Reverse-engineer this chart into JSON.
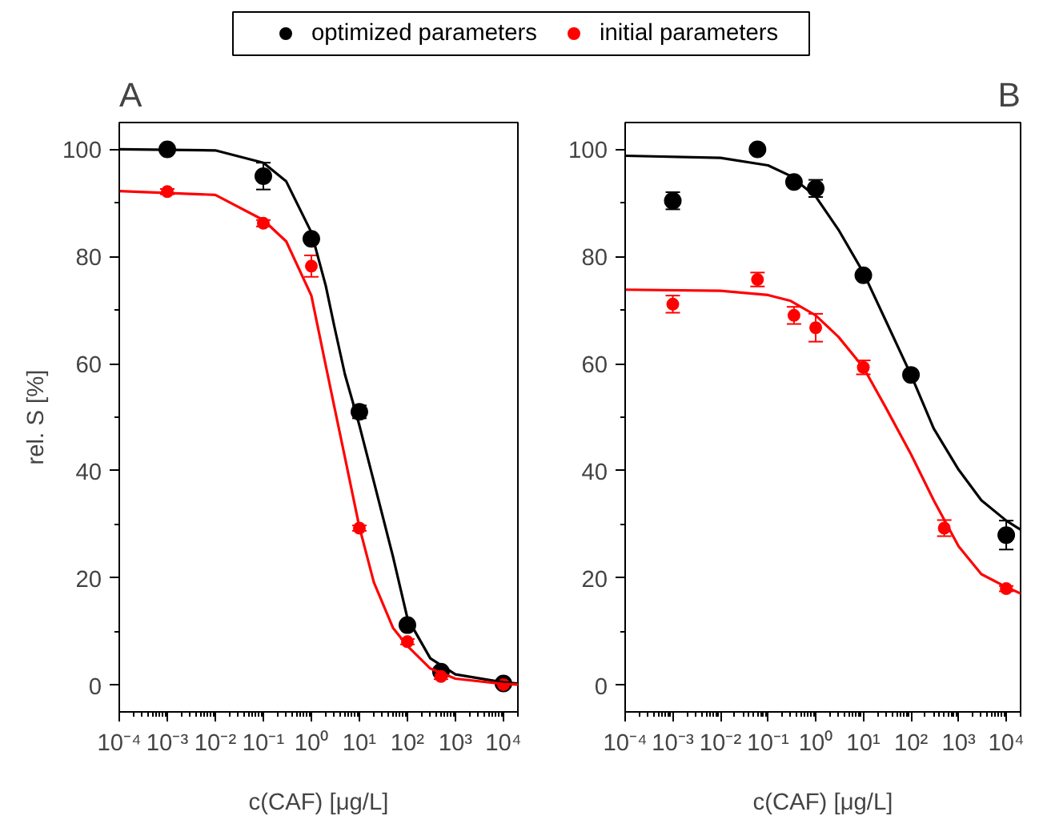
{
  "chart_data": [
    {
      "type": "scatter",
      "title": "A",
      "xlabel": "c(CAF) [μg/L]",
      "ylabel": "rel. S [%]",
      "log": "x",
      "xlim": [
        0.0001,
        20000
      ],
      "ylim": [
        -5,
        105
      ],
      "xticks": [
        {
          "value": 0.0001,
          "label": "10⁻⁴"
        },
        {
          "value": 0.001,
          "label": "10⁻³"
        },
        {
          "value": 0.01,
          "label": "10⁻²"
        },
        {
          "value": 0.1,
          "label": "10⁻¹"
        },
        {
          "value": 1,
          "label": "10⁰"
        },
        {
          "value": 10,
          "label": "10¹"
        },
        {
          "value": 100,
          "label": "10²"
        },
        {
          "value": 1000,
          "label": "10³"
        },
        {
          "value": 10000,
          "label": "10⁴"
        }
      ],
      "yticks": [
        0,
        20,
        40,
        60,
        80,
        100
      ],
      "grid": false,
      "legend": "top",
      "series": [
        {
          "name": "optimized parameters",
          "marker": "circle",
          "color": "#000000",
          "x": [
            0.001,
            0.1,
            1,
            10,
            100,
            500,
            10000
          ],
          "values": [
            100,
            95,
            83.3,
            51,
            11.2,
            2.5,
            0.3
          ],
          "errors": [
            0.5,
            2.5,
            0.7,
            1.2,
            0.5,
            0.8,
            0.4
          ]
        },
        {
          "name": "initial parameters",
          "marker": "circle",
          "color": "#ff0000",
          "x": [
            0.001,
            0.1,
            1,
            10,
            100,
            500,
            10000
          ],
          "values": [
            92.1,
            86.2,
            78.2,
            29.3,
            8.1,
            1.6,
            0.1
          ],
          "errors": [
            0.5,
            0.6,
            2,
            0.5,
            0.5,
            0.5,
            0.3
          ]
        },
        {
          "type": "line",
          "color": "#000000",
          "x": [
            0.0001,
            0.01,
            0.1,
            0.3,
            1,
            2,
            3,
            5,
            10,
            20,
            50,
            100,
            300,
            1000,
            10000,
            20000
          ],
          "values": [
            100,
            99.8,
            97.5,
            94,
            84.5,
            74.5,
            67,
            58,
            48.5,
            38,
            24,
            12.5,
            5,
            2,
            0.5,
            0.3
          ]
        },
        {
          "type": "line",
          "color": "#ff0000",
          "x": [
            0.0001,
            0.01,
            0.1,
            0.3,
            1,
            2,
            3,
            5,
            10,
            20,
            50,
            100,
            300,
            1000,
            10000,
            20000
          ],
          "values": [
            92.2,
            91.5,
            86.8,
            82.8,
            72.7,
            59.6,
            52,
            42.5,
            29.5,
            19.2,
            10.7,
            7.3,
            3.1,
            1.2,
            0.2,
            0.1
          ]
        }
      ]
    },
    {
      "type": "scatter",
      "title": "B",
      "xlabel": "c(CAF) [μg/L]",
      "log": "x",
      "xlim": [
        0.0001,
        20000
      ],
      "ylim": [
        -5,
        105
      ],
      "xticks": [
        {
          "value": 0.0001,
          "label": "10⁻⁴"
        },
        {
          "value": 0.001,
          "label": "10⁻³"
        },
        {
          "value": 0.01,
          "label": "10⁻²"
        },
        {
          "value": 0.1,
          "label": "10⁻¹"
        },
        {
          "value": 1,
          "label": "10⁰"
        },
        {
          "value": 10,
          "label": "10¹"
        },
        {
          "value": 100,
          "label": "10²"
        },
        {
          "value": 1000,
          "label": "10³"
        },
        {
          "value": 10000,
          "label": "10⁴"
        }
      ],
      "yticks": [
        0,
        20,
        40,
        60,
        80,
        100
      ],
      "grid": false,
      "series": [
        {
          "marker": "circle",
          "color": "#000000",
          "x": [
            0.001,
            0.06,
            0.35,
            1,
            10,
            100,
            10000
          ],
          "values": [
            90.4,
            100,
            93.9,
            92.7,
            76.5,
            57.9,
            28
          ],
          "errors": [
            1.6,
            0.8,
            0.8,
            1.6,
            0.5,
            0.8,
            2.7
          ]
        },
        {
          "marker": "circle",
          "color": "#ff0000",
          "x": [
            0.001,
            0.06,
            0.35,
            1,
            10,
            500,
            10000
          ],
          "values": [
            71.1,
            75.7,
            69,
            66.7,
            59.3,
            29.3,
            18
          ],
          "errors": [
            1.6,
            1.3,
            1.6,
            2.6,
            1.3,
            1.5,
            0.5
          ]
        },
        {
          "type": "line",
          "color": "#000000",
          "x": [
            0.0001,
            0.01,
            0.1,
            0.3,
            1,
            3,
            10,
            30,
            100,
            300,
            1000,
            3000,
            10000,
            20000
          ],
          "values": [
            98.8,
            98.4,
            97,
            95,
            91.2,
            85,
            77,
            67.9,
            57.9,
            47.9,
            40.2,
            34.5,
            30.7,
            29
          ]
        },
        {
          "type": "line",
          "color": "#ff0000",
          "x": [
            0.0001,
            0.01,
            0.1,
            0.3,
            1,
            3,
            10,
            30,
            100,
            300,
            1000,
            3000,
            10000,
            20000
          ],
          "values": [
            73.8,
            73.6,
            72.8,
            71.7,
            69,
            65,
            59.3,
            51.7,
            43.1,
            34.5,
            25.9,
            20.7,
            18.3,
            17.1
          ]
        }
      ]
    }
  ]
}
